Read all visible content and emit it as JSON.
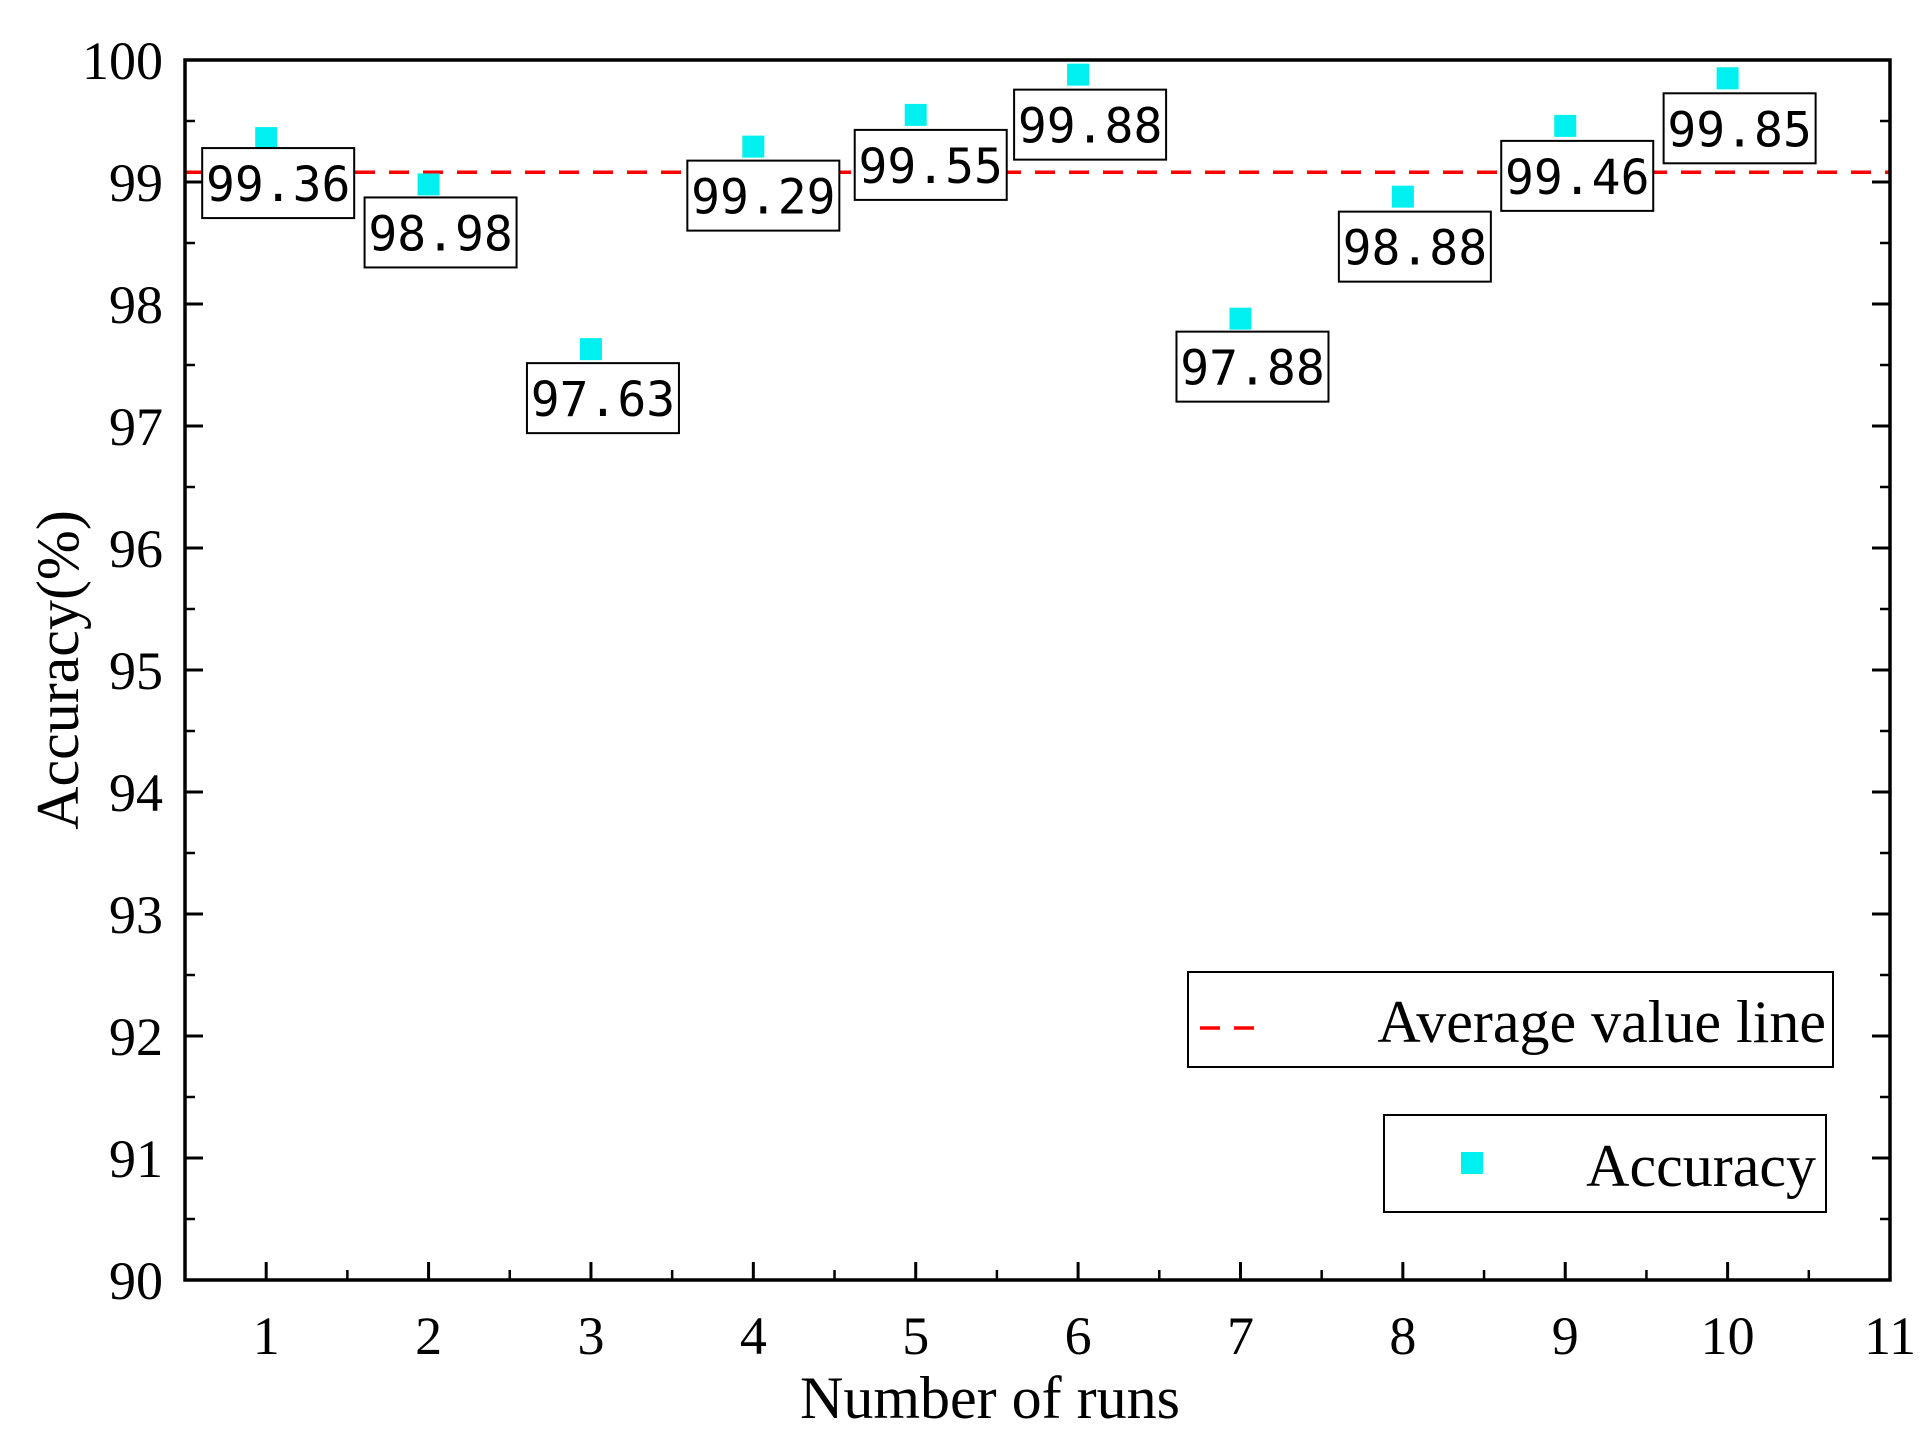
{
  "chart_data": {
    "type": "scatter",
    "title": "",
    "xlabel": "Number of runs",
    "ylabel": "Accuracy(%)",
    "xlim": [
      0.5,
      11
    ],
    "ylim": [
      90,
      100
    ],
    "x_ticks": [
      "1",
      "2",
      "3",
      "4",
      "5",
      "6",
      "7",
      "8",
      "9",
      "10",
      "11"
    ],
    "y_ticks": [
      "90",
      "91",
      "92",
      "93",
      "94",
      "95",
      "96",
      "97",
      "98",
      "99",
      "100"
    ],
    "series": [
      {
        "name": "Accuracy",
        "color": "#00f0f0",
        "marker": "square",
        "x": [
          1,
          2,
          3,
          4,
          5,
          6,
          7,
          8,
          9,
          10
        ],
        "y": [
          99.36,
          98.98,
          97.63,
          99.29,
          99.55,
          99.88,
          97.88,
          98.88,
          99.46,
          99.85
        ],
        "labels": [
          "99.36",
          "98.98",
          "97.63",
          "99.29",
          "99.55",
          "99.88",
          "97.88",
          "98.88",
          "99.46",
          "99.85"
        ]
      }
    ],
    "reference_lines": [
      {
        "name": "Average value line",
        "color": "#ff0000",
        "style": "dashed",
        "y": 99.08
      }
    ],
    "legend": [
      {
        "label": "Average value line",
        "kind": "dashed-line",
        "color": "#ff0000"
      },
      {
        "label": "Accuracy",
        "kind": "square-marker",
        "color": "#00f0f0"
      }
    ],
    "legend_position": "bottom-right",
    "grid": false
  }
}
